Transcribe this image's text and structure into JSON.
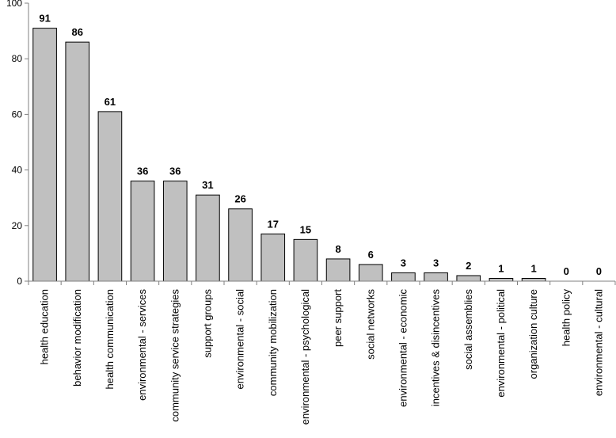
{
  "chart_data": {
    "type": "bar",
    "categories": [
      "health education",
      "behavior modification",
      "health communication",
      "environmental - services",
      "community service strategies",
      "support groups",
      "environmental - social",
      "community mobilization",
      "environmental - psychological",
      "peer support",
      "social networks",
      "environmental - economic",
      "incentives & disincentives",
      "social assemblies",
      "environmental - political",
      "organization culture",
      "health policy",
      "environmental - cultural"
    ],
    "values": [
      91,
      86,
      61,
      36,
      36,
      31,
      26,
      17,
      15,
      8,
      6,
      3,
      3,
      2,
      1,
      1,
      0,
      0
    ],
    "data_labels": [
      "91",
      "86",
      "61",
      "36",
      "36",
      "31",
      "26",
      "17",
      "15",
      "8",
      "6",
      "3",
      "3",
      "2",
      "1",
      "1",
      "0",
      "0"
    ],
    "y_ticks": [
      0,
      20,
      40,
      60,
      80,
      100
    ],
    "y_tick_labels": [
      "0",
      "20",
      "40",
      "60",
      "80",
      "100"
    ],
    "ylim": [
      0,
      100
    ],
    "title": "",
    "xlabel": "",
    "ylabel": "",
    "grid": false,
    "legend": "none",
    "colors": {
      "bar_fill": "#c0c0c0",
      "bar_stroke": "#000000",
      "axis": "#808080"
    }
  }
}
